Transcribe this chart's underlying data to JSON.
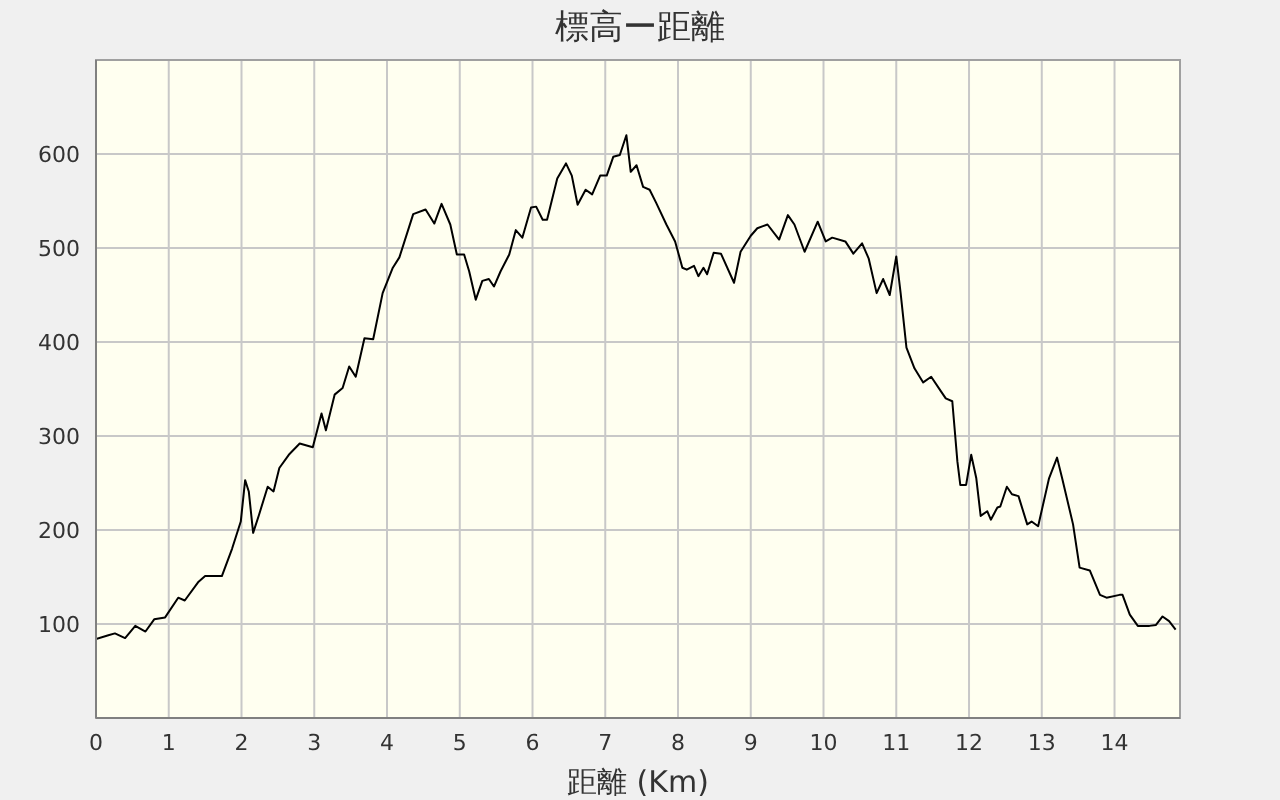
{
  "chart_data": {
    "type": "line",
    "title": "標高ー距離",
    "xlabel": "距離 (Km)",
    "x": [
      0,
      0.17,
      0.26,
      0.4,
      0.54,
      0.68,
      0.8,
      0.95,
      1.13,
      1.22,
      1.41,
      1.5,
      1.73,
      1.87,
      1.99,
      2.05,
      2.1,
      2.16,
      2.24,
      2.36,
      2.44,
      2.52,
      2.65,
      2.8,
      2.98,
      3.1,
      3.16,
      3.28,
      3.39,
      3.48,
      3.57,
      3.69,
      3.81,
      3.94,
      4.08,
      4.17,
      4.36,
      4.53,
      4.65,
      4.75,
      4.87,
      4.96,
      5.06,
      5.13,
      5.22,
      5.31,
      5.4,
      5.47,
      5.56,
      5.68,
      5.77,
      5.86,
      5.98,
      6.05,
      6.14,
      6.2,
      6.34,
      6.46,
      6.54,
      6.62,
      6.73,
      6.82,
      6.93,
      7.02,
      7.11,
      7.2,
      7.29,
      7.35,
      7.43,
      7.52,
      7.61,
      7.7,
      7.84,
      7.96,
      8.06,
      8.12,
      8.22,
      8.28,
      8.35,
      8.4,
      8.49,
      8.59,
      8.77,
      8.86,
      9.0,
      9.09,
      9.23,
      9.39,
      9.51,
      9.6,
      9.74,
      9.92,
      10.03,
      10.12,
      10.3,
      10.41,
      10.53,
      10.62,
      10.73,
      10.82,
      10.91,
      11.0,
      11.06,
      11.14,
      11.25,
      11.37,
      11.48,
      11.61,
      11.68,
      11.77,
      11.84,
      11.88,
      11.96,
      12.03,
      12.1,
      12.16,
      12.25,
      12.3,
      12.39,
      12.43,
      12.52,
      12.59,
      12.68,
      12.8,
      12.86,
      12.95,
      13.1,
      13.21,
      13.28,
      13.43,
      13.52,
      13.66,
      13.8,
      13.89,
      14.07,
      14.11,
      14.21,
      14.32,
      14.48,
      14.57,
      14.66,
      14.75,
      14.84
    ],
    "series": [
      {
        "color": "#000000",
        "values": [
          84,
          88,
          90,
          85,
          98,
          92,
          105,
          107,
          128,
          125,
          145,
          151,
          151,
          180,
          209,
          253,
          241,
          197,
          216,
          246,
          241,
          266,
          280,
          292,
          288,
          324,
          306,
          344,
          351,
          374,
          363,
          404,
          403,
          452,
          479,
          490,
          536,
          541,
          526,
          547,
          525,
          493,
          493,
          475,
          445,
          465,
          467,
          459,
          475,
          493,
          519,
          511,
          543,
          544,
          530,
          530,
          574,
          590,
          577,
          546,
          562,
          557,
          577,
          577,
          597,
          599,
          620,
          581,
          588,
          565,
          562,
          548,
          525,
          507,
          479,
          477,
          481,
          470,
          479,
          472,
          495,
          494,
          463,
          496,
          513,
          521,
          525,
          509,
          535,
          525,
          496,
          528,
          507,
          511,
          507,
          494,
          505,
          489,
          452,
          467,
          450,
          491,
          452,
          394,
          372,
          357,
          363,
          348,
          340,
          337,
          273,
          248,
          248,
          280,
          255,
          215,
          220,
          211,
          224,
          225,
          246,
          238,
          236,
          206,
          209,
          204,
          255,
          277,
          255,
          206,
          160,
          157,
          131,
          128,
          131,
          131,
          110,
          98,
          98,
          99,
          108,
          103,
          94
        ]
      }
    ],
    "xlim": [
      0,
      14.9
    ],
    "xticks": [
      0,
      1,
      2,
      3,
      4,
      5,
      6,
      7,
      8,
      9,
      10,
      11,
      12,
      13,
      14
    ],
    "ylim": [
      0,
      700
    ],
    "yticks": [
      100,
      200,
      300,
      400,
      500,
      600
    ],
    "grid": true,
    "marker": "none",
    "line_style": "solid"
  }
}
